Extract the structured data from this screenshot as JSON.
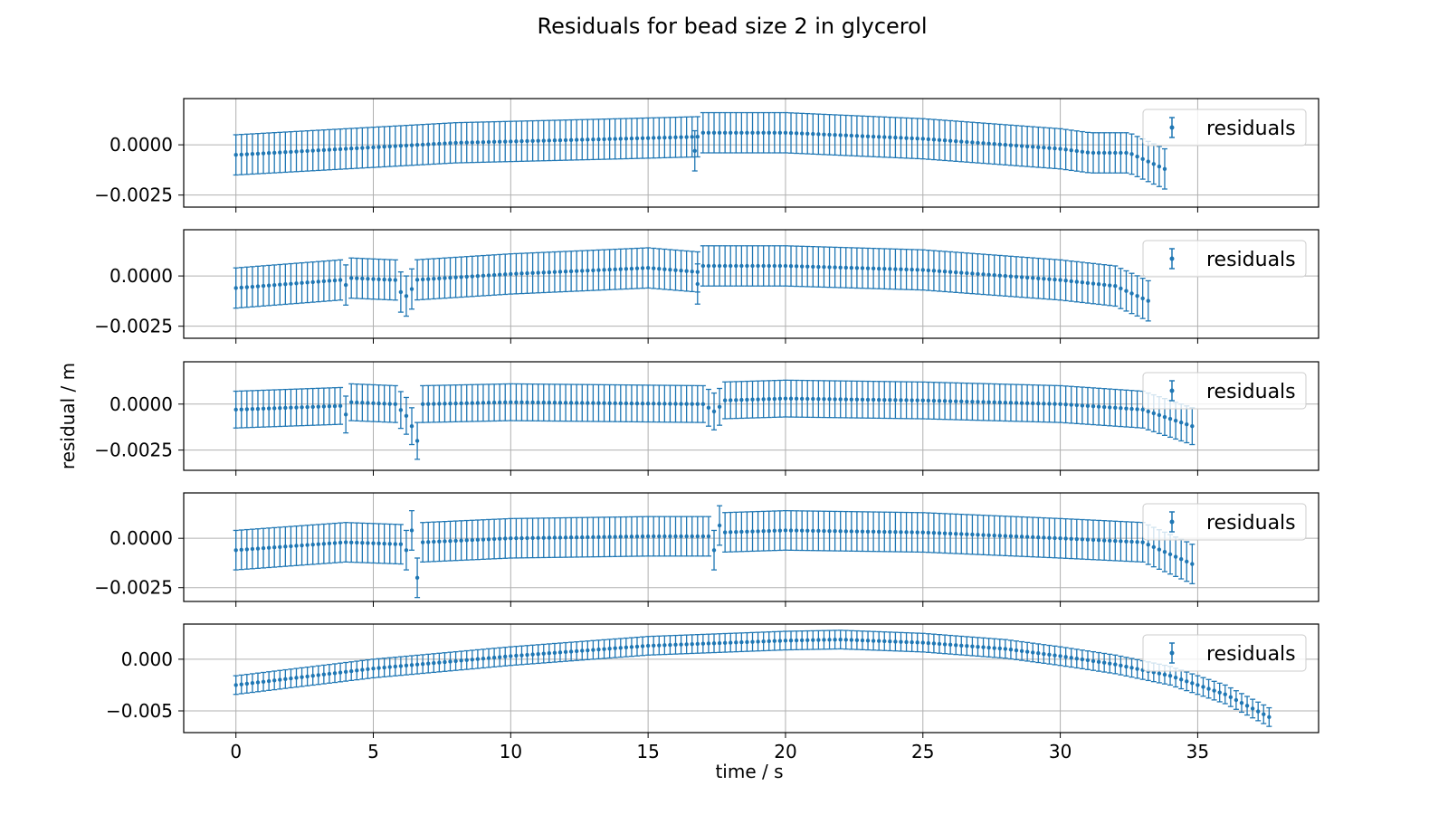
{
  "chart_data": {
    "type": "scatter",
    "title": "Residuals for bead  size 2 in glycerol",
    "xlabel": "time / s",
    "ylabel": "residual / m",
    "xlim": [
      -1.9,
      39.4
    ],
    "xticks": [
      0,
      5,
      10,
      15,
      20,
      25,
      30,
      35
    ],
    "grid": true,
    "sharex": true,
    "series_color": "#1f77b4",
    "legend_position": "upper right",
    "panels": [
      {
        "name": "residuals",
        "ylim": [
          -0.0031,
          0.0023
        ],
        "yticks": [
          -0.0025,
          0.0
        ],
        "ytick_labels": [
          "−0.0025",
          "0.0000"
        ],
        "yerr": 0.001,
        "x_end": 33.8,
        "profile": [
          [
            0,
            -0.0005
          ],
          [
            4,
            -0.0002
          ],
          [
            8,
            0.0001
          ],
          [
            14,
            0.0003
          ],
          [
            16.8,
            0.0004
          ],
          [
            17,
            0.0006
          ],
          [
            20,
            0.0006
          ],
          [
            25,
            0.0003
          ],
          [
            30,
            -0.0002
          ],
          [
            31.1,
            -0.0004
          ],
          [
            32.5,
            -0.0004
          ],
          [
            33.8,
            -0.0012
          ]
        ],
        "outliers": [
          [
            16.7,
            -0.0003
          ]
        ]
      },
      {
        "name": "residuals",
        "ylim": [
          -0.0031,
          0.0023
        ],
        "yticks": [
          -0.0025,
          0.0
        ],
        "ytick_labels": [
          "−0.0025",
          "0.0000"
        ],
        "yerr": 0.001,
        "x_end": 33.3,
        "profile": [
          [
            0,
            -0.0006
          ],
          [
            3.8,
            -0.0002
          ],
          [
            3.9,
            -0.0008
          ],
          [
            4.1,
            -0.0001
          ],
          [
            5.8,
            -0.0002
          ],
          [
            6.0,
            -0.0008
          ],
          [
            6.3,
            -0.0011
          ],
          [
            6.5,
            -0.0002
          ],
          [
            10,
            0.0001
          ],
          [
            15,
            0.0004
          ],
          [
            16.8,
            0.0002
          ],
          [
            17,
            0.0005
          ],
          [
            20,
            0.0005
          ],
          [
            25,
            0.0003
          ],
          [
            30,
            -0.0002
          ],
          [
            32,
            -0.0005
          ],
          [
            33.3,
            -0.0013
          ]
        ],
        "outliers": [
          [
            16.8,
            -0.0004
          ]
        ]
      },
      {
        "name": "residuals",
        "ylim": [
          -0.0036,
          0.0023
        ],
        "yticks": [
          -0.0025,
          0.0
        ],
        "ytick_labels": [
          "−0.0025",
          "0.0000"
        ],
        "yerr": 0.001,
        "x_end": 34.8,
        "profile": [
          [
            0,
            -0.0003
          ],
          [
            3.8,
            -0.0001
          ],
          [
            4.1,
            -0.0008
          ],
          [
            4.2,
            0.0001
          ],
          [
            5.8,
            0.0
          ],
          [
            6.3,
            -0.0008
          ],
          [
            6.5,
            -0.0016
          ],
          [
            6.7,
            -0.0024
          ],
          [
            6.8,
            0.0
          ],
          [
            10,
            0.0001
          ],
          [
            17,
            0.0
          ],
          [
            17.5,
            -0.0005
          ],
          [
            17.7,
            0.0002
          ],
          [
            20,
            0.0003
          ],
          [
            25,
            0.0002
          ],
          [
            30,
            0.0
          ],
          [
            33,
            -0.0003
          ],
          [
            34.8,
            -0.0012
          ]
        ],
        "outliers": []
      },
      {
        "name": "residuals",
        "ylim": [
          -0.0032,
          0.0023
        ],
        "yticks": [
          -0.0025,
          0.0
        ],
        "ytick_labels": [
          "−0.0025",
          "0.0000"
        ],
        "yerr": 0.001,
        "x_end": 34.8,
        "profile": [
          [
            0,
            -0.0006
          ],
          [
            4,
            -0.0002
          ],
          [
            6,
            -0.0003
          ],
          [
            6.2,
            -0.0006
          ],
          [
            6.4,
            0.0004
          ],
          [
            6.6,
            -0.002
          ],
          [
            6.8,
            -0.0002
          ],
          [
            10,
            0.0
          ],
          [
            15,
            0.0001
          ],
          [
            17.3,
            0.0001
          ],
          [
            17.4,
            -0.0006
          ],
          [
            17.5,
            0.001
          ],
          [
            17.7,
            0.0003
          ],
          [
            20,
            0.0004
          ],
          [
            25,
            0.0003
          ],
          [
            30,
            0.0
          ],
          [
            33,
            -0.0002
          ],
          [
            34.8,
            -0.0013
          ]
        ],
        "outliers": []
      },
      {
        "name": "residuals",
        "ylim": [
          -0.0071,
          0.0034
        ],
        "yticks": [
          -0.005,
          0.0
        ],
        "ytick_labels": [
          "−0.005",
          "0.000"
        ],
        "yerr": 0.0009,
        "x_end": 37.6,
        "profile": [
          [
            0,
            -0.0025
          ],
          [
            5,
            -0.0009
          ],
          [
            10,
            0.0003
          ],
          [
            15,
            0.0013
          ],
          [
            20,
            0.0018
          ],
          [
            22,
            0.0019
          ],
          [
            25,
            0.0016
          ],
          [
            28,
            0.001
          ],
          [
            30,
            0.0003
          ],
          [
            32,
            -0.0005
          ],
          [
            34,
            -0.0016
          ],
          [
            36,
            -0.0034
          ],
          [
            37.6,
            -0.0056
          ]
        ],
        "outliers": []
      }
    ]
  }
}
